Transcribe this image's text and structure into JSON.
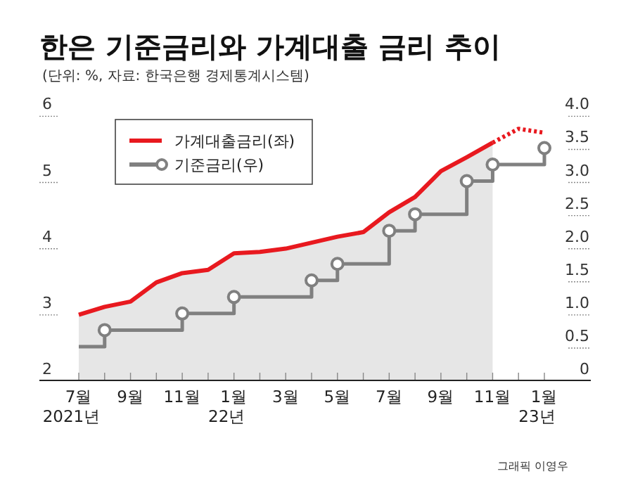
{
  "chart_data": {
    "type": "line",
    "title": "한은 기준금리와 가계대출 금리 추이",
    "subtitle": "(단위: %, 자료: 한국은행 경제통계시스템)",
    "categories": [
      "7월\n2021년",
      null,
      "9월",
      null,
      "11월",
      null,
      "1월\n22년",
      null,
      "3월",
      null,
      "5월",
      null,
      "7월",
      null,
      "9월",
      null,
      "11월",
      null,
      "1월\n23년"
    ],
    "series": [
      {
        "name": "가계대출금리(좌)",
        "type": "area",
        "color": "#e8191f",
        "values": [
          2.98,
          3.1,
          3.18,
          3.47,
          3.61,
          3.66,
          3.91,
          3.93,
          3.98,
          4.07,
          4.16,
          4.23,
          4.53,
          4.76,
          5.15,
          5.36,
          5.58,
          null,
          null
        ]
      },
      {
        "color": "#e8191f",
        "line_style": "dotted",
        "values": [
          null,
          null,
          null,
          null,
          null,
          null,
          null,
          null,
          null,
          null,
          null,
          null,
          null,
          null,
          null,
          null,
          5.58,
          5.79,
          5.73
        ]
      },
      {
        "name": "기준금리(우)",
        "type": "step",
        "axis": "y2",
        "color": "#808080",
        "marker": "circle",
        "values": [
          0.5,
          0.75,
          0.75,
          0.75,
          1.0,
          1.0,
          1.25,
          1.25,
          1.25,
          1.5,
          1.75,
          1.75,
          2.25,
          2.5,
          2.5,
          3.0,
          3.25,
          3.25,
          3.5
        ]
      }
    ],
    "ylim": [
      2,
      6
    ],
    "yticks": [
      2,
      3,
      4,
      5,
      6
    ],
    "y2lim": [
      0,
      4
    ],
    "y2ticks": [
      0,
      {
        "value": 0.5,
        "label": "0.5"
      },
      {
        "value": 1,
        "label": "1.0"
      },
      {
        "value": 1.5,
        "label": "1.5"
      },
      {
        "value": 2,
        "label": "2.0"
      },
      {
        "value": 2.5,
        "label": "2.5"
      },
      {
        "value": 3,
        "label": "3.0"
      },
      {
        "value": 3.5,
        "label": "3.5"
      },
      {
        "value": 4,
        "label": "4.0"
      }
    ],
    "legend": "top left",
    "grid": false,
    "annotations": [
      "그래픽 이영우"
    ]
  }
}
